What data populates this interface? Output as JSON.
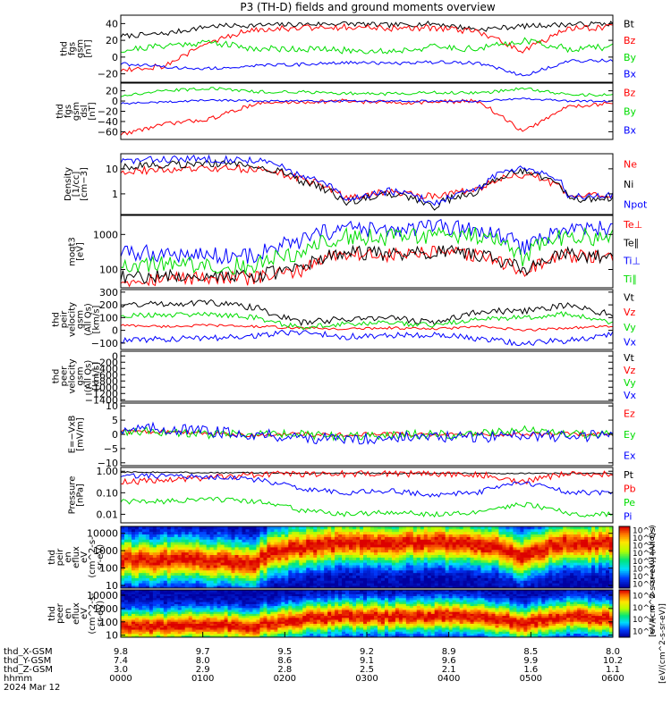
{
  "title": "P3 (TH-D) fields and ground moments overview",
  "colors": {
    "black": "#000000",
    "red": "#ff0000",
    "green": "#00dd00",
    "blue": "#0000ff",
    "frame": "#000000"
  },
  "chart_data": [
    {
      "type": "line",
      "ylabel": [
        "thd",
        "fgs",
        "gsm",
        "[nT]"
      ],
      "ylim": [
        -30,
        50
      ],
      "log": false,
      "ticks": [
        "40",
        "20",
        "0",
        "−20"
      ],
      "tickvals": [
        40,
        20,
        0,
        -20
      ],
      "series": [
        {
          "name": "Bt",
          "color": "black",
          "levels": [
            25,
            28,
            37,
            38,
            39,
            40,
            38,
            40,
            33,
            37,
            39,
            40
          ],
          "noise": 3
        },
        {
          "name": "Bz",
          "color": "red",
          "levels": [
            -15,
            -10,
            18,
            34,
            35,
            36,
            34,
            35,
            30,
            8,
            34,
            36
          ],
          "noise": 4
        },
        {
          "name": "By",
          "color": "green",
          "levels": [
            8,
            14,
            18,
            10,
            10,
            8,
            7,
            12,
            10,
            20,
            10,
            12
          ],
          "noise": 4
        },
        {
          "name": "Bx",
          "color": "blue",
          "levels": [
            -8,
            -12,
            -14,
            -10,
            -9,
            -6,
            -8,
            -6,
            -7,
            -22,
            -5,
            -4
          ],
          "noise": 2
        }
      ]
    },
    {
      "type": "line",
      "ylabel": [
        "thd",
        "fgs",
        "gsm",
        "dsl",
        "[nT]"
      ],
      "ylim": [
        -75,
        35
      ],
      "log": false,
      "ticks": [
        "20",
        "0",
        "−20",
        "−40",
        "−60"
      ],
      "tickvals": [
        20,
        0,
        -20,
        -40,
        -60
      ],
      "series": [
        {
          "name": "Bz",
          "color": "red",
          "levels": [
            -65,
            -45,
            -35,
            -5,
            -2,
            0,
            -3,
            -2,
            0,
            -60,
            -10,
            -5
          ],
          "noise": 4
        },
        {
          "name": "By",
          "color": "green",
          "levels": [
            10,
            20,
            25,
            18,
            18,
            15,
            14,
            17,
            15,
            25,
            12,
            12
          ],
          "noise": 3
        },
        {
          "name": "Bx",
          "color": "blue",
          "levels": [
            -5,
            -2,
            2,
            0,
            0,
            0,
            0,
            0,
            0,
            5,
            0,
            0
          ],
          "noise": 2
        }
      ]
    },
    {
      "type": "line",
      "ylabel": [
        "Density",
        "[1/cc]",
        "[cm−3]"
      ],
      "ylim": [
        0.15,
        40
      ],
      "log": true,
      "ticks": [
        "10",
        "1"
      ],
      "tickvals": [
        10,
        1
      ],
      "series": [
        {
          "name": "Ne",
          "color": "red",
          "levels": [
            8,
            9,
            10,
            10,
            4,
            0.6,
            1.2,
            0.8,
            1.5,
            6,
            0.7,
            0.9
          ],
          "noise": 0.15
        },
        {
          "name": "Ni",
          "color": "black",
          "levels": [
            12,
            15,
            16,
            14,
            3,
            0.4,
            1.0,
            0.3,
            1.2,
            8,
            0.6,
            0.7
          ],
          "noise": 0.15
        },
        {
          "name": "Npot",
          "color": "blue",
          "levels": [
            20,
            24,
            25,
            22,
            5,
            0.5,
            1.3,
            0.4,
            1.4,
            12,
            0.8,
            0.9
          ],
          "noise": 0.15
        }
      ]
    },
    {
      "type": "line",
      "ylabel": [
        "moqt3",
        "[eV]"
      ],
      "ylim": [
        30,
        3500
      ],
      "log": true,
      "ticks": [
        "1000",
        "100"
      ],
      "tickvals": [
        1000,
        100
      ],
      "series": [
        {
          "name": "Te⊥",
          "color": "red",
          "levels": [
            50,
            55,
            60,
            55,
            90,
            300,
            250,
            300,
            250,
            80,
            250,
            200
          ],
          "noise": 0.2
        },
        {
          "name": "Te∥",
          "color": "black",
          "levels": [
            60,
            65,
            70,
            65,
            100,
            320,
            270,
            330,
            270,
            90,
            270,
            220
          ],
          "noise": 0.2
        },
        {
          "name": "Ti⊥",
          "color": "blue",
          "levels": [
            300,
            280,
            260,
            250,
            600,
            1500,
            1200,
            1600,
            1300,
            400,
            1400,
            1500
          ],
          "noise": 0.25
        },
        {
          "name": "Ti∥",
          "color": "green",
          "levels": [
            150,
            140,
            130,
            130,
            300,
            900,
            800,
            1000,
            900,
            200,
            900,
            800
          ],
          "noise": 0.25
        }
      ]
    },
    {
      "type": "line",
      "ylabel": [
        "thd",
        "peir",
        "velocity",
        "gsm",
        "(All Qs)",
        "[km/s]"
      ],
      "ylim": [
        -150,
        320
      ],
      "log": false,
      "ticks": [
        "300",
        "200",
        "100",
        "0",
        "−100"
      ],
      "tickvals": [
        300,
        200,
        100,
        0,
        -100
      ],
      "series": [
        {
          "name": "Vt",
          "color": "black",
          "levels": [
            200,
            210,
            220,
            180,
            60,
            90,
            100,
            60,
            150,
            150,
            200,
            120
          ],
          "noise": 25
        },
        {
          "name": "Vz",
          "color": "red",
          "levels": [
            40,
            30,
            40,
            30,
            20,
            10,
            20,
            10,
            30,
            0,
            20,
            30
          ],
          "noise": 10
        },
        {
          "name": "Vy",
          "color": "green",
          "levels": [
            120,
            120,
            130,
            100,
            20,
            50,
            60,
            40,
            90,
            100,
            130,
            60
          ],
          "noise": 20
        },
        {
          "name": "Vx",
          "color": "blue",
          "levels": [
            -80,
            -70,
            -60,
            -40,
            -10,
            -50,
            -40,
            -30,
            -70,
            -100,
            -80,
            -30
          ],
          "noise": 25
        }
      ]
    },
    {
      "type": "line",
      "ylabel": [
        "thd",
        "peer",
        "velocity",
        "gsm",
        "(All Qs)",
        "[km/s]"
      ],
      "ylim": [
        -1450,
        150
      ],
      "log": false,
      "ticks": [
        "0",
        "−200",
        "−400",
        "−600",
        "−800",
        "−1000",
        "−1200",
        "−1400"
      ],
      "tickvals": [
        0,
        -200,
        -400,
        -600,
        -800,
        -1000,
        -1200,
        -1400
      ],
      "series": [
        {
          "name": "Vt",
          "color": "black",
          "levels": [],
          "noise": 0
        },
        {
          "name": "Vz",
          "color": "red",
          "levels": [],
          "noise": 0
        },
        {
          "name": "Vy",
          "color": "green",
          "levels": [],
          "noise": 0
        },
        {
          "name": "Vx",
          "color": "blue",
          "levels": [],
          "noise": 0
        }
      ]
    },
    {
      "type": "line",
      "ylabel": [
        "E=−VxB",
        "[mV/m]"
      ],
      "ylim": [
        -11,
        11
      ],
      "log": false,
      "ticks": [
        "10",
        "5",
        "0",
        "−5",
        "−10"
      ],
      "tickvals": [
        10,
        5,
        0,
        -5,
        -10
      ],
      "series": [
        {
          "name": "Ez",
          "color": "red",
          "levels": [
            1,
            1,
            0,
            0,
            0,
            0,
            0,
            0,
            0,
            0,
            0,
            0
          ],
          "noise": 0.8
        },
        {
          "name": "Ey",
          "color": "green",
          "levels": [
            1,
            1,
            0,
            0,
            0,
            -1,
            0,
            0,
            0,
            2,
            0,
            0
          ],
          "noise": 1.5
        },
        {
          "name": "Ex",
          "color": "blue",
          "levels": [
            2,
            2,
            1,
            0,
            -1,
            -2,
            -1,
            -1,
            -1,
            0,
            -1,
            0
          ],
          "noise": 2
        }
      ]
    },
    {
      "type": "line",
      "ylabel": [
        "Pressure",
        "[nPa]"
      ],
      "ylim": [
        0.004,
        1.5
      ],
      "log": true,
      "ticks": [
        "1.00",
        "0.10",
        "0.01"
      ],
      "tickvals": [
        1,
        0.1,
        0.01
      ],
      "series": [
        {
          "name": "Pt",
          "color": "black",
          "levels": [
            0.9,
            0.9,
            0.85,
            0.85,
            0.8,
            0.8,
            0.8,
            0.8,
            0.8,
            0.8,
            0.8,
            0.8
          ],
          "noise": 0.03
        },
        {
          "name": "Pb",
          "color": "red",
          "levels": [
            0.3,
            0.4,
            0.5,
            0.7,
            0.75,
            0.75,
            0.75,
            0.75,
            0.7,
            0.3,
            0.75,
            0.75
          ],
          "noise": 0.15
        },
        {
          "name": "Pe",
          "color": "green",
          "levels": [
            0.04,
            0.04,
            0.05,
            0.04,
            0.015,
            0.01,
            0.012,
            0.01,
            0.012,
            0.03,
            0.01,
            0.01
          ],
          "noise": 0.12
        },
        {
          "name": "Pi",
          "color": "blue",
          "levels": [
            0.6,
            0.6,
            0.55,
            0.4,
            0.15,
            0.1,
            0.12,
            0.08,
            0.1,
            0.3,
            0.1,
            0.1
          ],
          "noise": 0.12
        }
      ]
    },
    {
      "type": "heatmap",
      "ylabel": [
        "thd",
        "peir",
        "en",
        "eflux",
        "eV",
        "(cm^2-s-",
        "sr-eV)"
      ],
      "ylim": [
        7,
        25000
      ],
      "log": true,
      "ticks": [
        "10000",
        "1000",
        "100",
        "10"
      ],
      "tickvals": [
        10000,
        1000,
        100,
        10
      ],
      "peak_energy_eV": [
        300,
        300,
        250,
        200,
        1500,
        3000,
        2500,
        3000,
        2500,
        400,
        2500,
        3000
      ]
    },
    {
      "type": "heatmap",
      "ylabel": [
        "thd",
        "peer",
        "en",
        "eflux",
        "eV",
        "(cm^2-s-",
        "sr-eV)"
      ],
      "ylim": [
        7,
        25000
      ],
      "log": true,
      "ticks": [
        "10000",
        "1000",
        "100",
        "10"
      ],
      "tickvals": [
        10000,
        1000,
        100,
        10
      ],
      "peak_energy_eV": [
        50,
        50,
        60,
        50,
        150,
        300,
        250,
        300,
        250,
        60,
        250,
        200
      ]
    }
  ],
  "colorbars": [
    {
      "labels": [
        "10^7",
        "10^6",
        "10^5",
        "10^4",
        "10^3",
        "10^2",
        "10^1",
        "10^0"
      ],
      "title": "[eV/(cm^2-s-sr-eV)] (All Qs)"
    },
    {
      "labels": [
        "10^8",
        "10^6",
        "10^4",
        "10^2"
      ],
      "title": "[eV/(cm^2-s-sr-eV)]"
    }
  ],
  "time_axis": {
    "ticks": [
      "0000",
      "0100",
      "0200",
      "0300",
      "0400",
      "0500",
      "0600"
    ],
    "rows": [
      {
        "label": "thd_X-GSM",
        "values": [
          "9.8",
          "9.7",
          "9.5",
          "9.2",
          "8.9",
          "8.5",
          "8.0"
        ]
      },
      {
        "label": "thd_Y-GSM",
        "values": [
          "7.4",
          "8.0",
          "8.6",
          "9.1",
          "9.6",
          "9.9",
          "10.2"
        ]
      },
      {
        "label": "thd_Z-GSM",
        "values": [
          "3.0",
          "2.9",
          "2.8",
          "2.5",
          "2.1",
          "1.6",
          "1.1"
        ]
      },
      {
        "label": "hhmm",
        "values": [
          "0000",
          "0100",
          "0200",
          "0300",
          "0400",
          "0500",
          "0600"
        ]
      }
    ],
    "date": "2024 Mar 12"
  }
}
